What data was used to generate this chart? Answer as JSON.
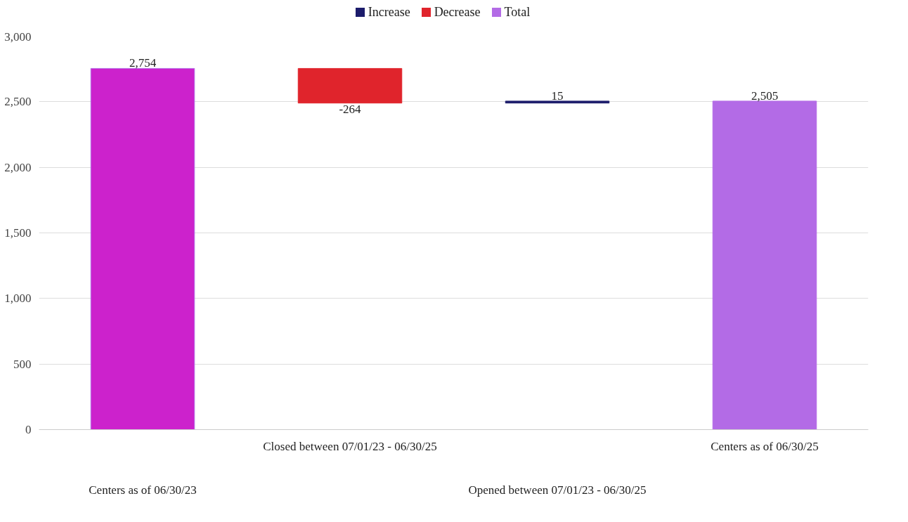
{
  "chart_data": {
    "type": "bar",
    "categories": [
      "Centers as of 06/30/23",
      "Closed between 07/01/23 - 06/30/25",
      "Opened between 07/01/23 - 06/30/25",
      "Centers as of 06/30/25"
    ],
    "series": [
      {
        "name": "Increase",
        "color": "#1c1c6b",
        "base": [
          null,
          null,
          2490,
          null
        ],
        "values": [
          null,
          null,
          15,
          null
        ],
        "value_labels": [
          null,
          null,
          "15",
          null
        ]
      },
      {
        "name": "Decrease",
        "color": "#e0242c",
        "base": [
          null,
          2754,
          null,
          null
        ],
        "values": [
          null,
          -264,
          null,
          null
        ],
        "value_labels": [
          null,
          "-264",
          null,
          null
        ]
      },
      {
        "name": "Total",
        "color": "#b36be6",
        "colors": [
          "#cc22cc",
          null,
          null,
          "#b36be6"
        ],
        "base": [
          0,
          null,
          null,
          0
        ],
        "values": [
          2754,
          null,
          null,
          2505
        ],
        "value_labels": [
          "2,754",
          null,
          null,
          "2,505"
        ]
      }
    ],
    "ylim": [
      0,
      3000
    ],
    "yticks": [
      {
        "value": 0,
        "label": "0"
      },
      {
        "value": 500,
        "label": "500"
      },
      {
        "value": 1000,
        "label": "1,000"
      },
      {
        "value": 1500,
        "label": "1,500"
      },
      {
        "value": 2000,
        "label": "2,000"
      },
      {
        "value": 2500,
        "label": "2,500"
      },
      {
        "value": 3000,
        "label": "3,000"
      }
    ],
    "grid": "y",
    "legend": "top"
  }
}
